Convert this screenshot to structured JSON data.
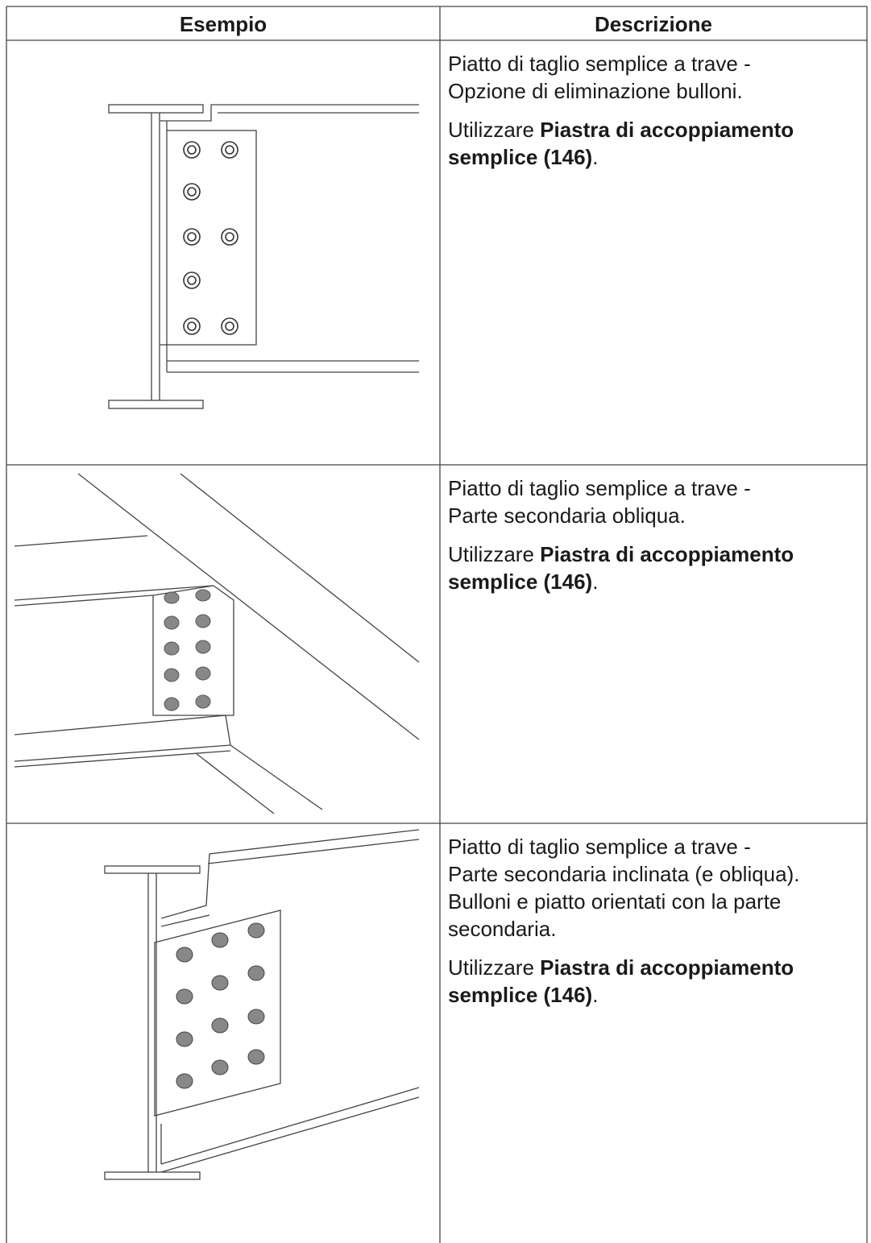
{
  "table": {
    "header": [
      "Esempio",
      "Descrizione"
    ],
    "rows": [
      {
        "description": [
          "Piatto di taglio semplice a trave -",
          "Opzione di eliminazione bulloni."
        ],
        "usage_prefix": "Utilizzare",
        "usage_link": "Piastra di accoppiamento semplice (146)",
        "usage_suffix": "."
      },
      {
        "description": [
          "Piatto di taglio semplice a trave -",
          "Parte secondaria obliqua."
        ],
        "usage_prefix": "Utilizzare",
        "usage_link": "Piastra di accoppiamento semplice (146)",
        "usage_suffix": "."
      },
      {
        "description": [
          "Piatto di taglio semplice a trave -",
          "Parte secondaria inclinata (e obliqua).",
          "Bulloni e piatto orientati con la parte",
          "secondaria."
        ],
        "usage_prefix": "Utilizzare",
        "usage_link": "Piastra di accoppiamento semplice (146)",
        "usage_suffix": "."
      }
    ]
  }
}
